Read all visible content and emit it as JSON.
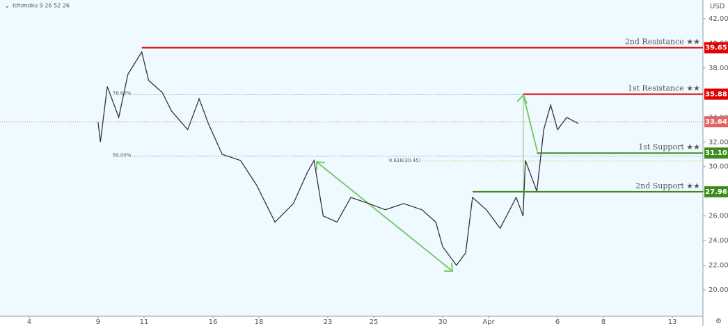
{
  "chart_data": {
    "type": "line",
    "indicator": "Ichimoku 9 26 52 26",
    "currency": "USD",
    "color": "#333333",
    "x": [
      3.0,
      3.1,
      3.4,
      3.9,
      4.3,
      4.9,
      5.2,
      5.8,
      6.2,
      6.9,
      7.4,
      7.8,
      8.4,
      9.2,
      9.9,
      10.7,
      11.5,
      12.1,
      12.4,
      12.8,
      13.4,
      14.0,
      14.8,
      15.5,
      16.3,
      17.1,
      17.7,
      18.0,
      18.6,
      19.0,
      19.3,
      19.9,
      20.5,
      21.2,
      21.5,
      21.6,
      22.1,
      22.4,
      22.7,
      23.0,
      23.4,
      23.9
    ],
    "values": [
      33.6,
      32,
      36.5,
      34,
      37.5,
      39.3,
      37,
      36,
      34.5,
      33,
      35.5,
      33.5,
      31,
      30.5,
      28.5,
      25.5,
      27,
      29.5,
      30.5,
      26,
      25.5,
      27.5,
      27,
      26.5,
      27,
      26.5,
      25.5,
      23.5,
      22,
      23,
      27.5,
      26.5,
      25,
      27.5,
      26,
      30.5,
      28,
      33,
      35,
      33,
      34,
      33.5
    ],
    "xlim": [
      -1.27,
      29.33
    ],
    "ylim": [
      17.86,
      43.52
    ],
    "xticks": [
      {
        "value": 0,
        "label": "4"
      },
      {
        "value": 3,
        "label": "9"
      },
      {
        "value": 5,
        "label": "11"
      },
      {
        "value": 8,
        "label": "16"
      },
      {
        "value": 10,
        "label": "18"
      },
      {
        "value": 13,
        "label": "23"
      },
      {
        "value": 15,
        "label": "25"
      },
      {
        "value": 18,
        "label": "30"
      },
      {
        "value": 20,
        "label": "Apr"
      },
      {
        "value": 23,
        "label": "6"
      },
      {
        "value": 25,
        "label": "8"
      },
      {
        "value": 28,
        "label": "13"
      }
    ],
    "yticks": [
      {
        "value": 20,
        "label": "20.00"
      },
      {
        "value": 22,
        "label": "22.00"
      },
      {
        "value": 24,
        "label": "24.00"
      },
      {
        "value": 26,
        "label": "26.00"
      },
      {
        "value": 28,
        "label": "28.00"
      },
      {
        "value": 30,
        "label": "30.00"
      },
      {
        "value": 32,
        "label": "32.00"
      },
      {
        "value": 34,
        "label": "34.00"
      },
      {
        "value": 36,
        "label": "36.00"
      },
      {
        "value": 38,
        "label": "38.00"
      },
      {
        "value": 40,
        "label": "40.00"
      },
      {
        "value": 42,
        "label": "42.00"
      }
    ],
    "levels": [
      {
        "name": "2nd Resistance ★★",
        "value": 39.65,
        "value_label": "39.65",
        "x_start": 4.9,
        "color": "#e00000"
      },
      {
        "name": "1st Resistance ★★",
        "value": 35.88,
        "value_label": "35.88",
        "x_start": 21.5,
        "color": "#e00000"
      },
      {
        "name": "1st Support ★★",
        "value": 31.1,
        "value_label": "31.10",
        "x_start": 22.1,
        "color": "#3d8b1f"
      },
      {
        "name": "2nd Support ★★",
        "value": 27.96,
        "value_label": "27.96",
        "x_start": 19.3,
        "color": "#3d8b1f"
      }
    ],
    "fib_levels": [
      {
        "label": "78.60%",
        "value": 35.88,
        "x_start": 4.5,
        "color": "#3b7fc4"
      },
      {
        "label": "50.00%",
        "value": 30.85,
        "x_start": 4.5,
        "color": "#3b7fc4"
      },
      {
        "label": "0.618(30.45)",
        "value": 30.45,
        "x_start": 17.1,
        "color": "#d4a017"
      }
    ],
    "last_price": {
      "value": 33.64,
      "label": "33.64",
      "color": "#e06666"
    }
  }
}
